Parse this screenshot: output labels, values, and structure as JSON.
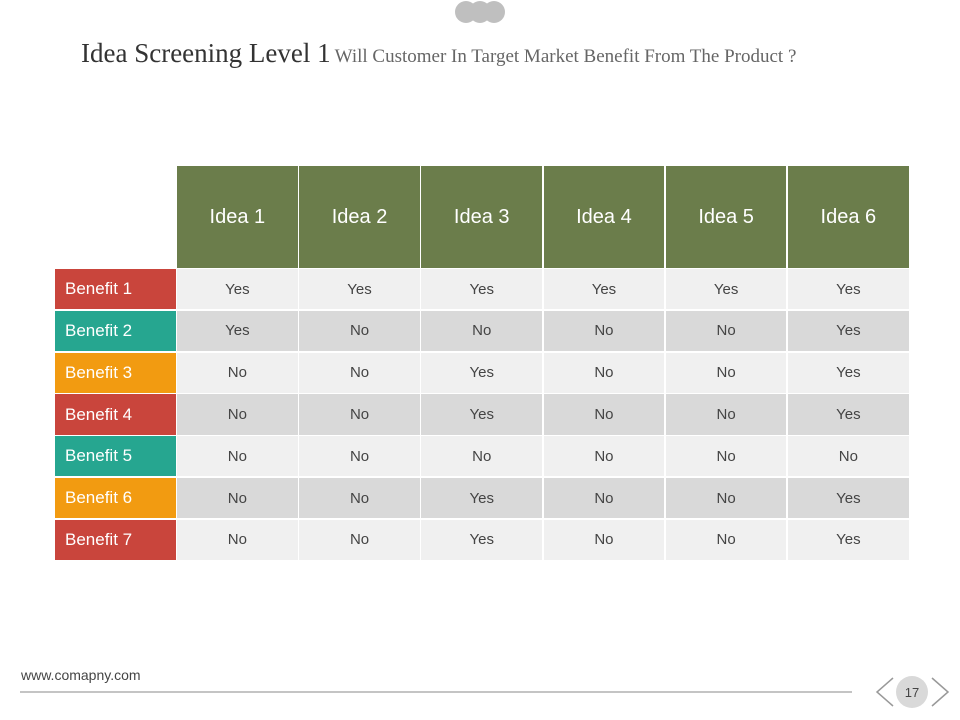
{
  "header": {
    "title": "Idea Screening Level 1",
    "subtitle": "Will Customer In Target Market Benefit From The Product ?"
  },
  "table": {
    "columns": [
      "Idea 1",
      "Idea 2",
      "Idea 3",
      "Idea 4",
      "Idea 5",
      "Idea 6"
    ],
    "rows": [
      {
        "label": "Benefit 1",
        "color": "#c9453c",
        "values": [
          "Yes",
          "Yes",
          "Yes",
          "Yes",
          "Yes",
          "Yes"
        ]
      },
      {
        "label": "Benefit 2",
        "color": "#26a690",
        "values": [
          "Yes",
          "No",
          "No",
          "No",
          "No",
          "Yes"
        ]
      },
      {
        "label": "Benefit 3",
        "color": "#f29b11",
        "values": [
          "No",
          "No",
          "Yes",
          "No",
          "No",
          "Yes"
        ]
      },
      {
        "label": "Benefit 4",
        "color": "#c9453c",
        "values": [
          "No",
          "No",
          "Yes",
          "No",
          "No",
          "Yes"
        ]
      },
      {
        "label": "Benefit 5",
        "color": "#26a690",
        "values": [
          "No",
          "No",
          "No",
          "No",
          "No",
          "No"
        ]
      },
      {
        "label": "Benefit 6",
        "color": "#f29b11",
        "values": [
          "No",
          "No",
          "Yes",
          "No",
          "No",
          "Yes"
        ]
      },
      {
        "label": "Benefit 7",
        "color": "#c9453c",
        "values": [
          "No",
          "No",
          "Yes",
          "No",
          "No",
          "Yes"
        ]
      }
    ]
  },
  "footer": {
    "website": "www.comapny.com",
    "page": 17
  }
}
